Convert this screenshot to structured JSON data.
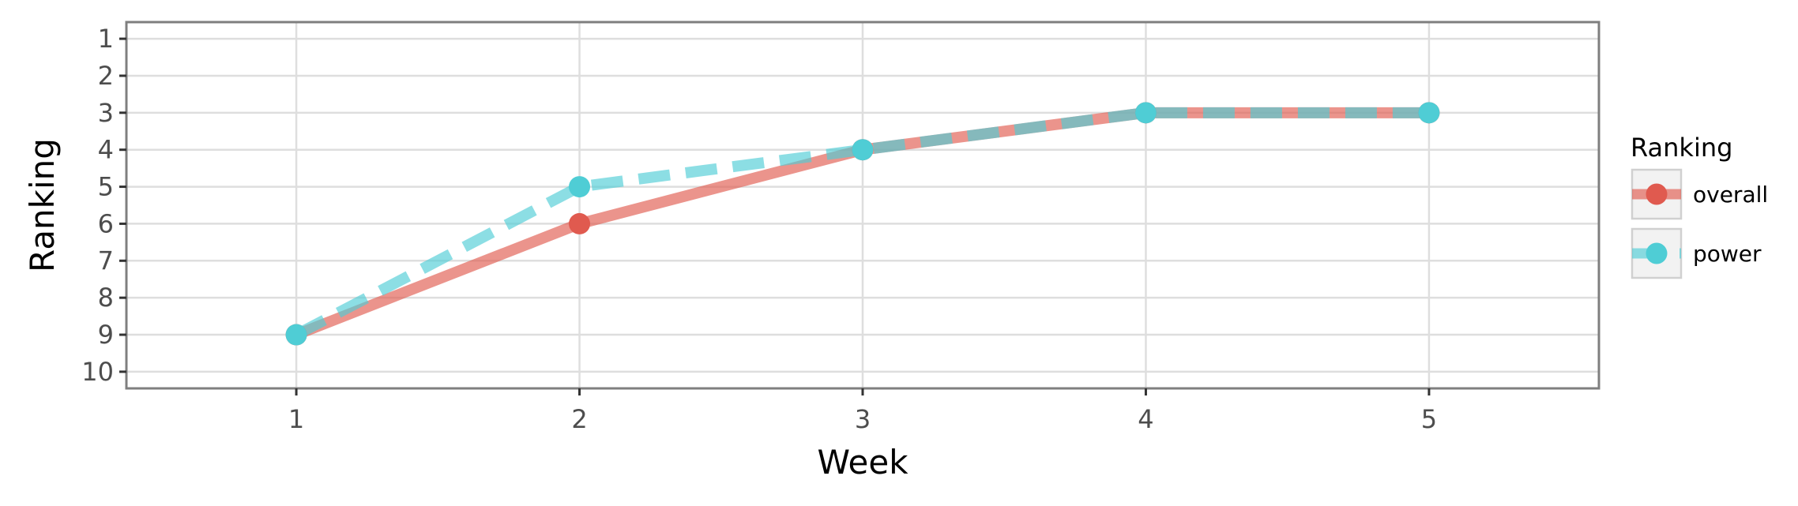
{
  "chart_data": {
    "type": "line",
    "xlabel": "Week",
    "ylabel": "Ranking",
    "x": [
      1,
      2,
      3,
      4,
      5
    ],
    "xlim": [
      0.4,
      5.6
    ],
    "ylim": [
      10.45,
      0.55
    ],
    "y_reversed": true,
    "x_ticks": [
      "1",
      "2",
      "3",
      "4",
      "5"
    ],
    "y_ticks": [
      "1",
      "2",
      "3",
      "4",
      "5",
      "6",
      "7",
      "8",
      "9",
      "10"
    ],
    "grid": true,
    "legend": {
      "title": "Ranking",
      "placement": "right"
    },
    "series": [
      {
        "name": "overall",
        "values": [
          9,
          6,
          4,
          3,
          3
        ],
        "color": "#e05a4f",
        "line_style": "solid"
      },
      {
        "name": "power",
        "values": [
          9,
          5,
          4,
          3,
          3
        ],
        "color": "#4fcdd5",
        "line_style": "dashed"
      }
    ]
  }
}
